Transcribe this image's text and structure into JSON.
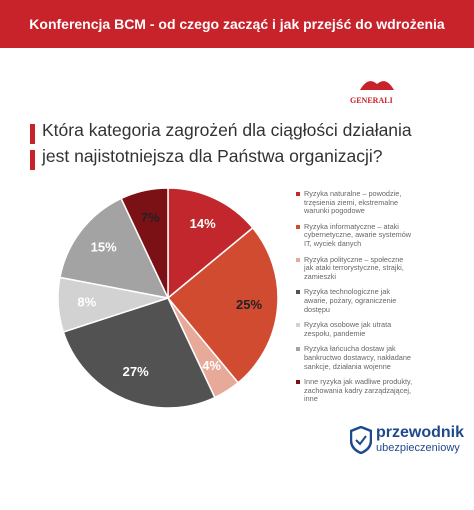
{
  "header": {
    "title": "Konferencja BCM - od czego zacząć i jak przejść do wdrożenia"
  },
  "logo": {
    "brand": "GENERALI"
  },
  "chart_data": {
    "type": "pie",
    "title_lines": [
      "Która kategoria zagrożeń dla ciągłości działania",
      "jest najistotniejsza dla Państwa organizacji?"
    ],
    "categories": [
      "Ryzyka naturalne – powodzie, trzęsienia ziemi, ekstremalne warunki pogodowe",
      "Ryzyka informatyczne – ataki cybernetyczne, awarie systemów IT, wyciek danych",
      "Ryzyka polityczne – społeczne jak ataki terrorystyczne, strajki, zamieszki",
      "Ryzyka technologiczne jak awarie, pożary, ograniczenie dostępu",
      "Ryzyka osobowe jak utrata zespołu, pandemie",
      "Ryzyka łańcucha dostaw jak bankructwo dostawcy, nakładane sankcje, działania wojenne",
      "Inne ryzyka jak wadliwe produkty, zachowania kadry zarządzającej, inne"
    ],
    "values": [
      14,
      25,
      4,
      27,
      8,
      15,
      7
    ],
    "value_labels": [
      "14%",
      "25%",
      "4%",
      "27%",
      "8%",
      "15%",
      "7%"
    ],
    "colors": [
      "#c1272d",
      "#d14b30",
      "#e8aa98",
      "#525252",
      "#d2d2d2",
      "#a3a3a3",
      "#7b1015"
    ]
  },
  "footer_logo": {
    "line1": "przewodnik",
    "line2": "ubezpieczeniowy"
  }
}
